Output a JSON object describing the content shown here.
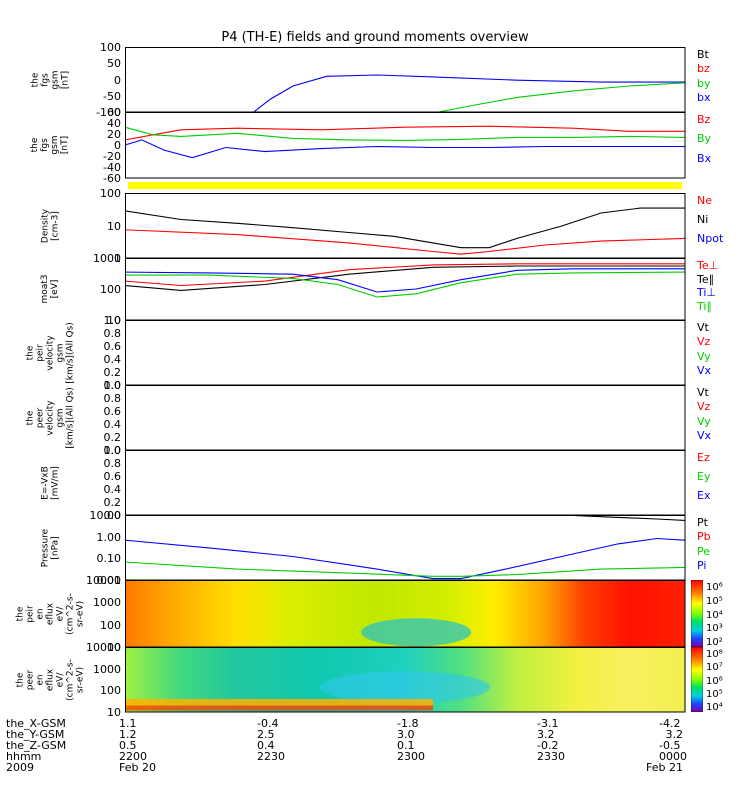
{
  "title": "P4 (TH-E) fields and ground moments overview",
  "chart_data": [
    {
      "type": "line",
      "ylabel": [
        "the",
        "fgs",
        "gsm",
        "[nT]"
      ],
      "ylim": [
        -100,
        100
      ],
      "yticks": [
        "100",
        "50",
        "0",
        "-50",
        "-100"
      ],
      "legend": [
        {
          "name": "Bt",
          "color": "#000000"
        },
        {
          "name": "bz",
          "color": "#ff0000"
        },
        {
          "name": "by",
          "color": "#00cc00"
        },
        {
          "name": "bx",
          "color": "#0000ff"
        }
      ],
      "series": [
        {
          "name": "bx",
          "color": "#0000ff",
          "x": [
            0.23,
            0.26,
            0.3,
            0.36,
            0.45,
            0.55,
            0.7,
            0.85,
            1.0
          ],
          "y": [
            -100,
            -60,
            -20,
            10,
            14,
            8,
            -2,
            -8,
            -8
          ]
        },
        {
          "name": "by",
          "color": "#00cc00",
          "x": [
            0.56,
            0.62,
            0.7,
            0.8,
            0.9,
            1.0
          ],
          "y": [
            -100,
            -80,
            -55,
            -35,
            -20,
            -10
          ]
        }
      ]
    },
    {
      "type": "line",
      "ylabel": [
        "the",
        "fgs",
        "gsm",
        "[nT]"
      ],
      "ylim": [
        -70,
        60
      ],
      "yticks": [
        "60",
        "40",
        "20",
        "0",
        "-20",
        "-40",
        "-60"
      ],
      "legend": [
        {
          "name": "Bz",
          "color": "#ff0000"
        },
        {
          "name": "By",
          "color": "#00cc00"
        },
        {
          "name": "Bx",
          "color": "#0000ff"
        }
      ],
      "series": [
        {
          "name": "Bz",
          "color": "#ff0000",
          "x": [
            0,
            0.05,
            0.1,
            0.2,
            0.35,
            0.5,
            0.65,
            0.8,
            0.9,
            1.0
          ],
          "y": [
            5,
            15,
            25,
            28,
            25,
            30,
            32,
            28,
            22,
            22
          ]
        },
        {
          "name": "By",
          "color": "#00cc00",
          "x": [
            0,
            0.05,
            0.1,
            0.2,
            0.3,
            0.4,
            0.5,
            0.6,
            0.7,
            0.8,
            0.9,
            1.0
          ],
          "y": [
            30,
            15,
            12,
            18,
            8,
            5,
            4,
            6,
            10,
            10,
            12,
            10
          ]
        },
        {
          "name": "Bx",
          "color": "#0000ff",
          "x": [
            0,
            0.03,
            0.07,
            0.12,
            0.18,
            0.25,
            0.35,
            0.45,
            0.55,
            0.65,
            0.75,
            0.85,
            1.0
          ],
          "y": [
            -5,
            5,
            -15,
            -30,
            -10,
            -18,
            -12,
            -8,
            -10,
            -10,
            -8,
            -8,
            -8
          ]
        }
      ]
    },
    {
      "type": "line",
      "ylabel": [
        "Density",
        "[cm-3]"
      ],
      "ylim": [
        0.1,
        100
      ],
      "log": true,
      "yticks": [
        "100",
        "10",
        "1"
      ],
      "legend": [
        {
          "name": "Ne",
          "color": "#ff0000"
        },
        {
          "name": "Ni",
          "color": "#000000"
        },
        {
          "name": "Npot",
          "color": "#0000ff"
        }
      ],
      "series": [
        {
          "name": "Ni",
          "color": "#000000",
          "x": [
            0,
            0.1,
            0.2,
            0.3,
            0.4,
            0.48,
            0.55,
            0.6,
            0.65,
            0.7,
            0.78,
            0.85,
            0.92,
            1.0
          ],
          "y": [
            15,
            6,
            4,
            2.5,
            1.5,
            1.0,
            0.5,
            0.3,
            0.3,
            0.8,
            3,
            12,
            20,
            20
          ]
        },
        {
          "name": "Ne",
          "color": "#ff0000",
          "x": [
            0,
            0.2,
            0.4,
            0.55,
            0.6,
            0.65,
            0.75,
            0.85,
            1.0
          ],
          "y": [
            2,
            1.2,
            0.5,
            0.2,
            0.15,
            0.2,
            0.4,
            0.6,
            0.8
          ]
        }
      ]
    },
    {
      "type": "line",
      "ylabel": [
        "moat3",
        "[eV]"
      ],
      "ylim": [
        10,
        1000
      ],
      "log": true,
      "yticks": [
        "1000",
        "100",
        "10"
      ],
      "legend": [
        {
          "name": "Te⊥",
          "color": "#ff0000"
        },
        {
          "name": "Te∥",
          "color": "#000000"
        },
        {
          "name": "Ti⊥",
          "color": "#0000ff"
        },
        {
          "name": "Ti∥",
          "color": "#00cc00"
        }
      ],
      "series": [
        {
          "name": "Te∥",
          "color": "#000000",
          "x": [
            0,
            0.1,
            0.25,
            0.4,
            0.55,
            0.7,
            1.0
          ],
          "y": [
            130,
            90,
            140,
            300,
            500,
            550,
            550
          ]
        },
        {
          "name": "Te⊥",
          "color": "#ff0000",
          "x": [
            0,
            0.1,
            0.25,
            0.4,
            0.55,
            0.7,
            1.0
          ],
          "y": [
            180,
            130,
            180,
            420,
            600,
            650,
            650
          ]
        },
        {
          "name": "Ti⊥",
          "color": "#0000ff",
          "x": [
            0,
            0.15,
            0.3,
            0.38,
            0.45,
            0.52,
            0.6,
            0.7,
            0.8,
            1.0
          ],
          "y": [
            350,
            330,
            300,
            200,
            80,
            100,
            200,
            400,
            450,
            450
          ]
        },
        {
          "name": "Ti∥",
          "color": "#00cc00",
          "x": [
            0,
            0.15,
            0.3,
            0.38,
            0.45,
            0.52,
            0.6,
            0.7,
            0.8,
            1.0
          ],
          "y": [
            280,
            280,
            220,
            140,
            55,
            70,
            160,
            300,
            330,
            350
          ]
        }
      ]
    },
    {
      "type": "line",
      "ylabel": [
        "the",
        "peir",
        "velocity",
        "gsm",
        "[km/s](All Qs)"
      ],
      "ylim": [
        0,
        1
      ],
      "yticks": [
        "1.0",
        "0.8",
        "0.6",
        "0.4",
        "0.2",
        "0.0"
      ],
      "legend": [
        {
          "name": "Vt",
          "color": "#000000"
        },
        {
          "name": "Vz",
          "color": "#ff0000"
        },
        {
          "name": "Vy",
          "color": "#00cc00"
        },
        {
          "name": "Vx",
          "color": "#0000ff"
        }
      ],
      "series": []
    },
    {
      "type": "line",
      "ylabel": [
        "the",
        "peer",
        "velocity",
        "gsm",
        "[km/s](All Qs)"
      ],
      "ylim": [
        0,
        1
      ],
      "yticks": [
        "1.0",
        "0.8",
        "0.6",
        "0.4",
        "0.2",
        "0.0"
      ],
      "legend": [
        {
          "name": "Vt",
          "color": "#000000"
        },
        {
          "name": "Vz",
          "color": "#ff0000"
        },
        {
          "name": "Vy",
          "color": "#00cc00"
        },
        {
          "name": "Vx",
          "color": "#0000ff"
        }
      ],
      "series": []
    },
    {
      "type": "line",
      "ylabel": [
        "E=-VxB",
        "[mV/m]"
      ],
      "ylim": [
        0,
        1
      ],
      "yticks": [
        "1.0",
        "0.8",
        "0.6",
        "0.4",
        "0.2",
        "0.0"
      ],
      "legend": [
        {
          "name": "Ez",
          "color": "#ff0000"
        },
        {
          "name": "Ey",
          "color": "#00cc00"
        },
        {
          "name": "Ex",
          "color": "#0000ff"
        }
      ],
      "series": []
    },
    {
      "type": "line",
      "ylabel": [
        "Pressure",
        "[nPa]"
      ],
      "ylim": [
        0.005,
        20
      ],
      "log": true,
      "yticks": [
        "10.00",
        "1.00",
        "0.10",
        "0.01"
      ],
      "legend": [
        {
          "name": "Pt",
          "color": "#000000"
        },
        {
          "name": "Pb",
          "color": "#ff0000"
        },
        {
          "name": "Pe",
          "color": "#00cc00"
        },
        {
          "name": "Pi",
          "color": "#0000ff"
        }
      ],
      "series": [
        {
          "name": "Pt",
          "color": "#000000",
          "x": [
            0.78,
            0.85,
            0.95,
            1.0
          ],
          "y": [
            20,
            16,
            12,
            10
          ]
        },
        {
          "name": "Pi",
          "color": "#0000ff",
          "x": [
            0,
            0.15,
            0.3,
            0.45,
            0.55,
            0.6,
            0.68,
            0.78,
            0.88,
            0.95,
            1.0
          ],
          "y": [
            0.8,
            0.3,
            0.1,
            0.02,
            0.006,
            0.006,
            0.02,
            0.1,
            0.5,
            1.0,
            0.8
          ]
        },
        {
          "name": "Pe",
          "color": "#00cc00",
          "x": [
            0,
            0.2,
            0.4,
            0.55,
            0.6,
            0.7,
            0.85,
            1.0
          ],
          "y": [
            0.05,
            0.02,
            0.012,
            0.008,
            0.008,
            0.01,
            0.02,
            0.025
          ]
        }
      ]
    },
    {
      "type": "heatmap",
      "ylabel": [
        "the",
        "peir",
        "en",
        "eflux",
        "eV/",
        "(cm^2-s-",
        "sr-eV)"
      ],
      "log": true,
      "ylim": [
        5,
        20000
      ],
      "yticks": [
        "10000",
        "1000",
        "100",
        "10"
      ],
      "colorbar_ticks": [
        "10⁶",
        "10⁵",
        "10⁴",
        "10³",
        "10²"
      ],
      "description_bands": [
        {
          "x": [
            0.0,
            0.12
          ],
          "color": "#ff7a00"
        },
        {
          "x": [
            0.12,
            0.25
          ],
          "color": "#ffd000"
        },
        {
          "x": [
            0.25,
            0.6
          ],
          "color": "#c8e800"
        },
        {
          "x": [
            0.6,
            0.72
          ],
          "color": "#ffee00"
        },
        {
          "x": [
            0.72,
            0.82
          ],
          "color": "#ff9a00"
        },
        {
          "x": [
            0.82,
            1.0
          ],
          "color": "#ff2000"
        }
      ]
    },
    {
      "type": "heatmap",
      "ylabel": [
        "the",
        "peer",
        "en",
        "eflux",
        "eV/",
        "(cm^2-s-",
        "sr-eV)"
      ],
      "log": true,
      "ylim": [
        5,
        20000
      ],
      "yticks": [
        "10000",
        "1000",
        "100",
        "10"
      ],
      "colorbar_ticks": [
        "10⁸",
        "10⁷",
        "10⁶",
        "10⁵",
        "10⁴"
      ]
    }
  ],
  "xaxis": {
    "rows": [
      {
        "label": "the_X-GSM",
        "values": [
          "1.1",
          "-0.4",
          "-1.8",
          "-3.1",
          "-4.2"
        ]
      },
      {
        "label": "the_Y-GSM",
        "values": [
          "1.2",
          "2.5",
          "3.0",
          "3.2",
          "3.2"
        ]
      },
      {
        "label": "the_Z-GSM",
        "values": [
          "0.5",
          "0.4",
          "0.1",
          "-0.2",
          "-0.5"
        ]
      },
      {
        "label": "hhmm",
        "values": [
          "2200",
          "2230",
          "2300",
          "2330",
          "0000"
        ]
      },
      {
        "label": "2009",
        "values": [
          "Feb 20",
          "",
          "",
          "",
          "Feb 21"
        ]
      }
    ]
  }
}
